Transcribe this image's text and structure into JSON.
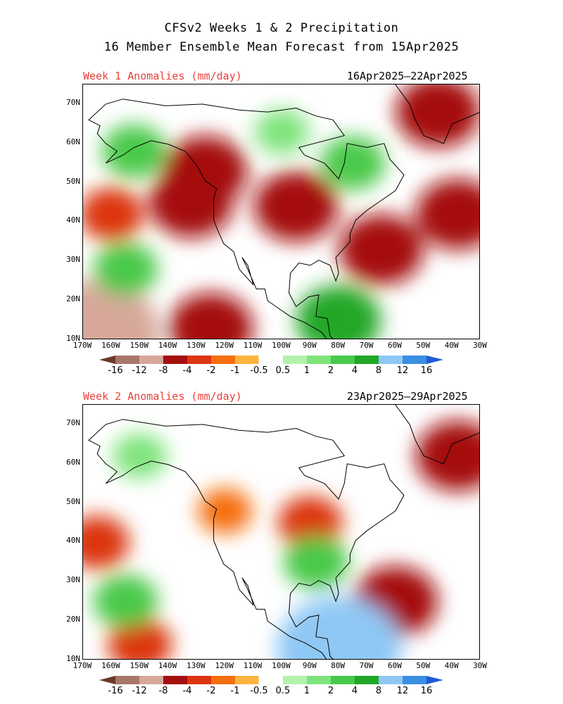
{
  "title_line1": "CFSv2 Weeks 1 & 2 Precipitation",
  "title_line2": "16 Member Ensemble Mean Forecast from 15Apr2025",
  "colors": {
    "-16": "#6b3a28",
    "-12": "#a8766a",
    "-8": "#d7a89a",
    "-4": "#a50f0f",
    "-2": "#dc3411",
    "-1": "#f56e10",
    "-0.5": "#fbb43e",
    "0.5": "#b3f2ad",
    "1": "#7fe47c",
    "2": "#48c94a",
    "4": "#21a726",
    "8": "#8fc8f5",
    "12": "#3b8fe3",
    "16": "#1f5cd6"
  },
  "colorbar": {
    "labels": [
      "-16",
      "-12",
      "-8",
      "-4",
      "-2",
      "-1",
      "-0.5",
      "0.5",
      "1",
      "2",
      "4",
      "8",
      "12",
      "16"
    ],
    "colors": [
      "#6b3a28",
      "#a8766a",
      "#d7a89a",
      "#a50f0f",
      "#dc3411",
      "#f56e10",
      "#fbb43e",
      "#ffffff",
      "#b3f2ad",
      "#7fe47c",
      "#48c94a",
      "#21a726",
      "#8fc8f5",
      "#3b8fe3",
      "#1f5cd6"
    ]
  },
  "axes": {
    "lat_labels": [
      "70N",
      "60N",
      "50N",
      "40N",
      "30N",
      "20N",
      "10N"
    ],
    "lon_labels": [
      "170W",
      "160W",
      "150W",
      "140W",
      "130W",
      "120W",
      "110W",
      "100W",
      "90W",
      "80W",
      "70W",
      "60W",
      "50W",
      "40W",
      "30W"
    ],
    "lat_range": [
      10,
      75
    ],
    "lon_range": [
      -170,
      -30
    ]
  },
  "panels": [
    {
      "label": "Week 1 Anomalies (mm/day)",
      "dates": "16Apr2025–22Apr2025"
    },
    {
      "label": "Week 2 Anomalies (mm/day)",
      "dates": "23Apr2025–29Apr2025"
    }
  ],
  "chart_data": [
    {
      "type": "heatmap",
      "title": "Week 1 Anomalies (mm/day)",
      "subtitle": "16Apr2025–22Apr2025",
      "xlabel": "",
      "ylabel": "",
      "xlim": [
        -170,
        -30
      ],
      "ylim": [
        10,
        75
      ],
      "grid": false,
      "regions": [
        {
          "lon": -160,
          "lat": 42,
          "value": -2
        },
        {
          "lon": -132,
          "lat": 45,
          "value": -4
        },
        {
          "lon": -127,
          "lat": 53,
          "value": -4
        },
        {
          "lon": -95,
          "lat": 44,
          "value": -4
        },
        {
          "lon": -65,
          "lat": 33,
          "value": -4
        },
        {
          "lon": -38,
          "lat": 42,
          "value": -4
        },
        {
          "lon": -45,
          "lat": 68,
          "value": -4
        },
        {
          "lon": -125,
          "lat": 13,
          "value": -4
        },
        {
          "lon": -165,
          "lat": 12,
          "value": -8
        },
        {
          "lon": -152,
          "lat": 58,
          "value": 2
        },
        {
          "lon": -100,
          "lat": 63,
          "value": 1
        },
        {
          "lon": -75,
          "lat": 55,
          "value": 2
        },
        {
          "lon": -155,
          "lat": 28,
          "value": 2
        },
        {
          "lon": -80,
          "lat": 15,
          "value": 4
        }
      ]
    },
    {
      "type": "heatmap",
      "title": "Week 2 Anomalies (mm/day)",
      "subtitle": "23Apr2025–29Apr2025",
      "xlabel": "",
      "ylabel": "",
      "xlim": [
        -170,
        -30
      ],
      "ylim": [
        10,
        75
      ],
      "grid": false,
      "regions": [
        {
          "lon": -165,
          "lat": 40,
          "value": -2
        },
        {
          "lon": -120,
          "lat": 48,
          "value": -1
        },
        {
          "lon": -90,
          "lat": 45,
          "value": -2
        },
        {
          "lon": -60,
          "lat": 25,
          "value": -4
        },
        {
          "lon": -38,
          "lat": 62,
          "value": -4
        },
        {
          "lon": -150,
          "lat": 14,
          "value": -2
        },
        {
          "lon": -155,
          "lat": 25,
          "value": 2
        },
        {
          "lon": -88,
          "lat": 35,
          "value": 2
        },
        {
          "lon": -80,
          "lat": 13,
          "value": 8
        },
        {
          "lon": -150,
          "lat": 62,
          "value": 1
        }
      ]
    }
  ]
}
